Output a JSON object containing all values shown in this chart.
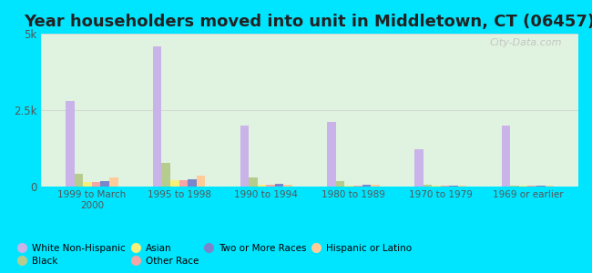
{
  "title": "Year householders moved into unit in Middletown, CT (06457)",
  "categories": [
    "1999 to March\n2000",
    "1995 to 1998",
    "1990 to 1994",
    "1980 to 1989",
    "1970 to 1979",
    "1969 or earlier"
  ],
  "series_order": [
    "White Non-Hispanic",
    "Black",
    "Asian",
    "Other Race",
    "Two or More Races",
    "Hispanic or Latino"
  ],
  "series": {
    "White Non-Hispanic": {
      "values": [
        2800,
        4600,
        2000,
        2100,
        1200,
        2000
      ],
      "color": "#c9b3e8"
    },
    "Black": {
      "values": [
        400,
        750,
        280,
        180,
        50,
        30
      ],
      "color": "#b5cc8e"
    },
    "Asian": {
      "values": [
        130,
        200,
        50,
        30,
        20,
        10
      ],
      "color": "#f5f07a"
    },
    "Other Race": {
      "values": [
        130,
        200,
        50,
        30,
        20,
        10
      ],
      "color": "#f5a5a5"
    },
    "Two or More Races": {
      "values": [
        170,
        230,
        80,
        40,
        20,
        10
      ],
      "color": "#7986cb"
    },
    "Hispanic or Latino": {
      "values": [
        280,
        350,
        60,
        40,
        20,
        10
      ],
      "color": "#ffcc99"
    }
  },
  "ylim": [
    0,
    5000
  ],
  "yticks": [
    0,
    2500,
    5000
  ],
  "ytick_labels": [
    "0",
    "2.5k",
    "5k"
  ],
  "background_color": "#00e5ff",
  "chart_bg": "#e0f2e0",
  "watermark": "City-Data.com",
  "title_fontsize": 13,
  "bar_width": 0.1,
  "legend_order": [
    "White Non-Hispanic",
    "Black",
    "Asian",
    "Other Race",
    "Two or More Races",
    "Hispanic or Latino"
  ]
}
